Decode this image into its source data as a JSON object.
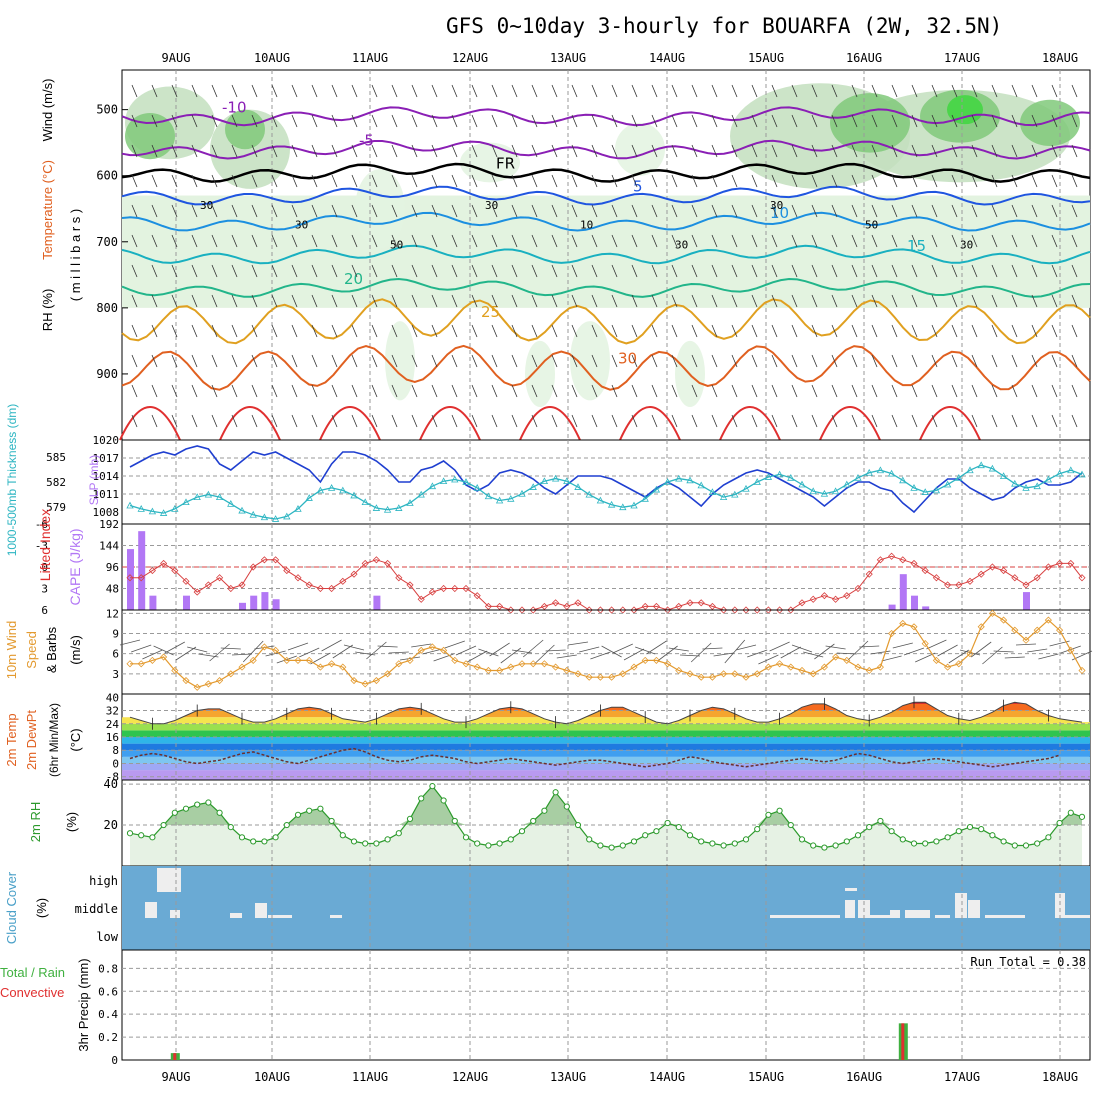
{
  "title": "GFS 0~10day 3-hourly for BOUARFA (2W, 32.5N)",
  "colors": {
    "rh_light": "#e3f3e0",
    "rh_mid": "#c3dfbe",
    "rh_dark": "#80c97a",
    "rh_bright": "#3fd63f",
    "slp": "#1f3fd0",
    "thickness": "#2db5c2",
    "cape": "#b277f5",
    "li": "#d84040",
    "wind10": "#e39a2f",
    "rh2m": "#2c9a2c",
    "cloud_bg": "#6aaad4",
    "precip_total": "#3fb03f",
    "precip_conv": "#e03030"
  },
  "chart_data": [
    {
      "type": "contour",
      "panel": "upper-air",
      "ylabel_parts": [
        "RH (%)",
        "Temperature (°C)",
        "Wind (m/s)"
      ],
      "ylabel_units": "( m i l l i b a r s )",
      "x_categories": [
        "9AUG",
        "10AUG",
        "11AUG",
        "12AUG",
        "13AUG",
        "14AUG",
        "15AUG",
        "16AUG",
        "17AUG",
        "18AUG"
      ],
      "y_ticks": [
        500,
        600,
        700,
        800,
        900
      ],
      "ylim": [
        1000,
        440
      ],
      "temperature_contours": [
        {
          "label": "-10",
          "pressure_mean": 510
        },
        {
          "label": "-5",
          "pressure_mean": 560
        },
        {
          "label": "FR",
          "pressure_mean": 595
        },
        {
          "label": "5",
          "pressure_mean": 630
        },
        {
          "label": "10",
          "pressure_mean": 670
        },
        {
          "label": "15",
          "pressure_mean": 720
        },
        {
          "label": "20",
          "pressure_mean": 770
        },
        {
          "label": "25",
          "pressure_mean": 820
        },
        {
          "label": "30",
          "pressure_mean": 890
        }
      ],
      "rh_labels": [
        "30",
        "30",
        "50",
        "30",
        "10",
        "30",
        "30",
        "50",
        "30"
      ]
    },
    {
      "type": "line",
      "panel": "slp-thickness",
      "ylabel_left": "1000-500mb Thickness (dm)",
      "ylabel_right": "SLP (mb)",
      "thickness_ticks": [
        579,
        582,
        585
      ],
      "slp_ticks": [
        1008,
        1011,
        1014,
        1017,
        1020
      ],
      "slp_series": [
        1015.5,
        1016.5,
        1017.5,
        1018,
        1017.5,
        1018.5,
        1019,
        1018.5,
        1016,
        1015,
        1016.5,
        1018,
        1017.5,
        1018,
        1017,
        1016,
        1015,
        1013,
        1016,
        1018,
        1018,
        1017.5,
        1016.5,
        1015,
        1013,
        1013,
        1015,
        1015.5,
        1016.5,
        1015,
        1012.5,
        1011.5,
        1012.5,
        1014.5,
        1015,
        1014.5,
        1013.5,
        1012,
        1011,
        1012.5,
        1014,
        1014,
        1014,
        1013.5,
        1012.5,
        1011.5,
        1010.5,
        1012,
        1013,
        1012,
        1010.5,
        1009,
        1011,
        1012.5,
        1013.5,
        1014.5,
        1015,
        1014.5,
        1013.5,
        1012.5,
        1011.5,
        1010.5,
        1009,
        1010.5,
        1012,
        1013,
        1013,
        1012,
        1011.5,
        1009.5,
        1008,
        1010,
        1012,
        1013.5,
        1013.5,
        1012,
        1011,
        1010,
        1010.5,
        1012,
        1013,
        1013.5,
        1012.5,
        1012.5,
        1013,
        1014.5
      ],
      "thickness_series": [
        579.2,
        578.8,
        578.5,
        578.3,
        578.8,
        579.6,
        580.2,
        580.5,
        580.2,
        579.4,
        578.6,
        578.1,
        577.8,
        577.6,
        577.9,
        578.8,
        580.1,
        581.0,
        581.3,
        581.0,
        580.4,
        579.6,
        578.9,
        578.7,
        578.9,
        579.5,
        580.5,
        581.5,
        582.1,
        582.3,
        582.0,
        581.3,
        580.3,
        579.8,
        580.0,
        580.6,
        581.4,
        582.1,
        582.4,
        582.1,
        581.4,
        580.5,
        579.8,
        579.3,
        579.0,
        579.2,
        580.0,
        581.1,
        582.0,
        582.4,
        582.2,
        581.6,
        580.8,
        580.2,
        580.5,
        581.2,
        582.0,
        582.6,
        582.9,
        582.5,
        581.7,
        580.9,
        580.6,
        580.9,
        581.7,
        582.5,
        583.1,
        583.4,
        583.0,
        582.2,
        581.3,
        580.8,
        581.0,
        581.7,
        582.5,
        583.4,
        584.0,
        583.6,
        582.7,
        581.8,
        581.3,
        581.5,
        582.3,
        583.0,
        583.4,
        582.9
      ]
    },
    {
      "type": "bar+line",
      "panel": "cape-li",
      "ylabel_left": "Lifted Index",
      "ylabel_right": "CAPE (J/kg)",
      "li_ticks": [
        -6,
        -3,
        0,
        3,
        6
      ],
      "li_tick_labels": [
        "-6",
        "-3",
        "0",
        "3",
        "6"
      ],
      "cape_ticks": [
        48,
        96,
        144,
        192
      ],
      "cape_bars": [
        136,
        176,
        32,
        0,
        0,
        32,
        0,
        0,
        0,
        0,
        16,
        32,
        40,
        24,
        0,
        0,
        0,
        0,
        0,
        0,
        0,
        0,
        32,
        0,
        0,
        0,
        0,
        0,
        0,
        0,
        0,
        0,
        0,
        0,
        0,
        0,
        0,
        0,
        0,
        0,
        0,
        0,
        0,
        0,
        0,
        0,
        0,
        0,
        0,
        0,
        0,
        0,
        0,
        0,
        0,
        0,
        0,
        0,
        0,
        0,
        0,
        0,
        0,
        0,
        0,
        0,
        0,
        0,
        12,
        80,
        32,
        8,
        0,
        0,
        0,
        0,
        0,
        0,
        0,
        0,
        40,
        0,
        0,
        0,
        0,
        0
      ],
      "li_series": [
        1.5,
        1.5,
        0.5,
        -0.5,
        0.5,
        2,
        3.5,
        2.5,
        1.5,
        3,
        2.5,
        0,
        -1,
        -1,
        0.5,
        1.5,
        2.5,
        3,
        3,
        2,
        1,
        -0.5,
        -1,
        -0.5,
        1.5,
        2.5,
        4.5,
        3.5,
        3,
        3,
        3,
        4,
        5.5,
        5.5,
        6,
        6.5,
        6,
        5.5,
        5,
        5.5,
        5,
        6,
        6.5,
        6.5,
        7,
        6,
        5.5,
        5.5,
        6,
        5.5,
        5,
        5,
        5.5,
        6,
        6,
        6.5,
        7,
        7,
        7,
        6.5,
        5,
        4.5,
        4,
        4.5,
        4,
        3,
        1,
        -1,
        -1.5,
        -1,
        -0.5,
        0.5,
        1.5,
        2.5,
        2.5,
        2,
        1,
        0,
        0.5,
        1.5,
        2.5,
        1.5,
        0,
        -0.5,
        -0.5,
        1.5
      ]
    },
    {
      "type": "line",
      "panel": "wind10m",
      "ylabel": "10m Wind Speed & Barbs (m/s)",
      "ylabel_parts": [
        "10m Wind",
        "Speed",
        "& Barbs",
        "(m/s)"
      ],
      "y_ticks": [
        3,
        6,
        9,
        12
      ],
      "ylim": [
        0,
        12
      ],
      "wind_series": [
        4.5,
        4.5,
        5,
        5.5,
        3.5,
        2,
        1,
        1.5,
        2,
        3,
        4,
        5,
        7,
        6.5,
        5,
        5,
        5,
        4,
        4.5,
        4,
        2,
        1.5,
        2,
        3,
        4.5,
        5,
        6.5,
        7,
        6.5,
        5,
        4.5,
        4,
        3.5,
        3.5,
        4,
        4.5,
        4.5,
        4.5,
        4,
        3.5,
        3,
        2.5,
        2.5,
        2.5,
        3,
        4,
        5,
        5,
        4.5,
        3.5,
        3,
        2.5,
        2.5,
        3,
        3,
        2.5,
        3,
        4,
        4.5,
        4,
        3.5,
        3,
        4,
        5.5,
        5,
        4,
        3.5,
        4,
        9,
        10.5,
        10,
        7.5,
        5,
        4,
        4.5,
        6,
        10,
        12,
        11,
        9.5,
        8,
        9.5,
        11,
        9.5,
        6.5,
        3.5
      ]
    },
    {
      "type": "area",
      "panel": "temp-dewpt",
      "ylabel_parts": [
        "2m Temp",
        "2m DewPt",
        "(6hr Min/Max)",
        "(°C)"
      ],
      "y_ticks": [
        -8,
        0,
        8,
        16,
        24,
        32,
        40
      ],
      "ylim": [
        -10,
        42
      ],
      "temp_series": [
        28,
        26,
        24,
        24,
        26,
        29,
        32,
        33,
        33,
        30,
        27,
        25,
        25,
        27,
        30,
        33,
        34,
        33,
        30,
        27,
        26,
        25,
        27,
        30,
        33,
        34,
        33,
        30,
        27,
        25,
        25,
        27,
        30,
        33,
        34,
        33,
        30,
        27,
        25,
        24,
        26,
        29,
        32,
        34,
        34,
        31,
        28,
        25,
        24,
        26,
        29,
        32,
        34,
        33,
        30,
        27,
        25,
        25,
        27,
        30,
        34,
        36,
        36,
        33,
        29,
        27,
        26,
        28,
        31,
        35,
        37,
        37,
        33,
        29,
        27,
        26,
        28,
        31,
        35,
        37,
        36,
        32,
        29,
        27,
        26,
        25
      ],
      "dewpt_series": [
        3,
        5,
        6,
        5,
        3,
        1,
        0,
        1,
        2,
        4,
        6,
        7,
        5,
        3,
        1,
        0,
        2,
        4,
        6,
        8,
        9,
        7,
        4,
        2,
        1,
        2,
        4,
        5,
        4,
        3,
        1,
        0,
        1,
        2,
        3,
        2,
        1,
        0,
        -1,
        0,
        1,
        2,
        2,
        1,
        0,
        -1,
        -2,
        -1,
        0,
        2,
        4,
        3,
        1,
        0,
        -1,
        -2,
        -1,
        0,
        1,
        2,
        3,
        2,
        1,
        2,
        4,
        6,
        5,
        3,
        1,
        0,
        1,
        2,
        3,
        2,
        1,
        0,
        -1,
        -2,
        -1,
        0,
        1,
        2,
        3,
        5
      ]
    },
    {
      "type": "area",
      "panel": "rh2m",
      "ylabel": "2m RH (%)",
      "y_ticks": [
        20,
        40
      ],
      "ylim": [
        0,
        42
      ],
      "rh_series": [
        16,
        15,
        14,
        20,
        26,
        28,
        30,
        31,
        26,
        19,
        14,
        12,
        12,
        14,
        20,
        25,
        27,
        28,
        22,
        15,
        12,
        11,
        11,
        13,
        16,
        23,
        33,
        39,
        32,
        22,
        14,
        11,
        10,
        11,
        13,
        17,
        22,
        27,
        36,
        29,
        20,
        13,
        10,
        9,
        10,
        12,
        15,
        17,
        21,
        19,
        15,
        12,
        11,
        10,
        11,
        13,
        18,
        25,
        27,
        20,
        13,
        10,
        9,
        10,
        12,
        15,
        19,
        22,
        17,
        13,
        11,
        11,
        12,
        14,
        17,
        19,
        18,
        15,
        12,
        10,
        10,
        11,
        14,
        21,
        26,
        24
      ]
    },
    {
      "type": "bar",
      "panel": "cloud",
      "ylabel": "Cloud Cover (%)",
      "levels": [
        "high",
        "middle",
        "low"
      ]
    },
    {
      "type": "bar",
      "panel": "precip",
      "ylabel_parts": [
        "Total / Rain",
        "Convective",
        "3hr Precip (mm)"
      ],
      "y_ticks": [
        0,
        0.2,
        0.4,
        0.6,
        0.8
      ],
      "y_tick_labels": [
        "0",
        "0.2",
        "0.4",
        "0.6",
        "0.8"
      ],
      "ylim": [
        0,
        0.96
      ],
      "run_total_label": "Run Total = 0.38",
      "precip_bars": [
        {
          "index": 4,
          "total": 0.06,
          "conv": 0.06
        },
        {
          "index": 69,
          "total": 0.32,
          "conv": 0.32
        }
      ]
    }
  ]
}
